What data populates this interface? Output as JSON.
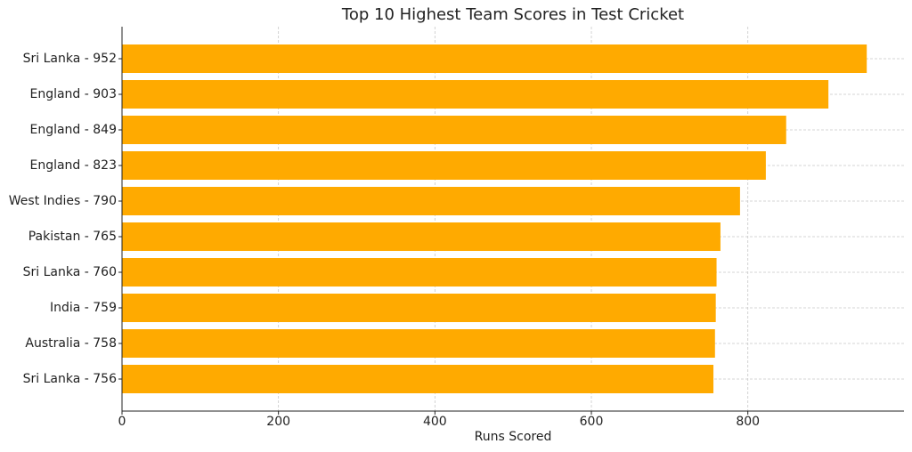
{
  "chart_data": {
    "type": "bar",
    "orientation": "horizontal",
    "title": "Top 10 Highest Team Scores in Test Cricket",
    "x_label": "Runs Scored",
    "categories": [
      "Sri Lanka - 952",
      "England - 903",
      "England - 849",
      "England - 823",
      "West Indies - 790",
      "Pakistan - 765",
      "Sri Lanka - 760",
      "India - 759",
      "Australia - 758",
      "Sri Lanka - 756"
    ],
    "values": [
      952,
      903,
      849,
      823,
      790,
      765,
      760,
      759,
      758,
      756
    ],
    "color": "#ffaa00",
    "xlim": [
      0,
      999.6
    ],
    "xticks": [
      0,
      200,
      400,
      600,
      800
    ],
    "grid": true
  }
}
